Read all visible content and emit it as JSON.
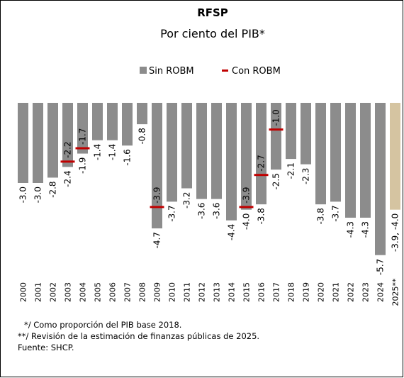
{
  "chart_data": {
    "type": "bar",
    "title": "RFSP",
    "subtitle": "Por ciento del PIB*",
    "categories": [
      "2000",
      "2001",
      "2002",
      "2003",
      "2004",
      "2005",
      "2006",
      "2007",
      "2008",
      "2009",
      "2010",
      "2011",
      "2012",
      "2013",
      "2014",
      "2015",
      "2016",
      "2017",
      "2018",
      "2019",
      "2020",
      "2021",
      "2022",
      "2023",
      "2024",
      "2025**"
    ],
    "series": [
      {
        "name": "Sin ROBM",
        "color": "#8c8c8c",
        "colors": [
          "#8c8c8c",
          "#8c8c8c",
          "#8c8c8c",
          "#8c8c8c",
          "#8c8c8c",
          "#8c8c8c",
          "#8c8c8c",
          "#8c8c8c",
          "#8c8c8c",
          "#8c8c8c",
          "#8c8c8c",
          "#8c8c8c",
          "#8c8c8c",
          "#8c8c8c",
          "#8c8c8c",
          "#8c8c8c",
          "#8c8c8c",
          "#8c8c8c",
          "#8c8c8c",
          "#8c8c8c",
          "#8c8c8c",
          "#8c8c8c",
          "#8c8c8c",
          "#8c8c8c",
          "#8c8c8c",
          "#d5c4a1"
        ],
        "values": [
          -3.0,
          -3.0,
          -2.8,
          -2.4,
          -1.9,
          -1.4,
          -1.4,
          -1.6,
          -0.8,
          -4.7,
          -3.7,
          -3.2,
          -3.6,
          -3.6,
          -4.4,
          -4.0,
          -3.8,
          -2.5,
          -2.1,
          -2.3,
          -3.8,
          -3.7,
          -4.3,
          -4.3,
          -5.7,
          -4.0
        ],
        "value_labels": [
          "-3.0",
          "-3.0",
          "-2.8",
          "-2.4",
          "-1.9",
          "-1.4",
          "-1.4",
          "-1.6",
          "-0.8",
          "-4.7",
          "-3.7",
          "-3.2",
          "-3.6",
          "-3.6",
          "-4.4",
          "-4.0",
          "-3.8",
          "-2.5",
          "-2.1",
          "-2.3",
          "-3.8",
          "-3.7",
          "-4.3",
          "-4.3",
          "-5.7",
          "-3.9, -4.0"
        ]
      },
      {
        "name": "Con ROBM",
        "color": "#c00000",
        "values": [
          null,
          null,
          null,
          -2.2,
          -1.7,
          null,
          null,
          null,
          null,
          -3.9,
          null,
          null,
          null,
          null,
          null,
          -3.9,
          -2.7,
          -1.0,
          null,
          null,
          null,
          null,
          null,
          null,
          null,
          null
        ],
        "value_labels": [
          null,
          null,
          null,
          "-2.2",
          "-1.7",
          null,
          null,
          null,
          null,
          "-3.9",
          null,
          null,
          null,
          null,
          null,
          "-3.9",
          "-2.7",
          "-1.0",
          null,
          null,
          null,
          null,
          null,
          null,
          null,
          null
        ]
      }
    ],
    "ylim": [
      -6,
      0
    ],
    "notes": [
      "*/ Como proporción del PIB base 2018.",
      "**/ Revisión de la estimación de finanzas públicas de 2025.",
      "Fuente: SHCP."
    ]
  }
}
